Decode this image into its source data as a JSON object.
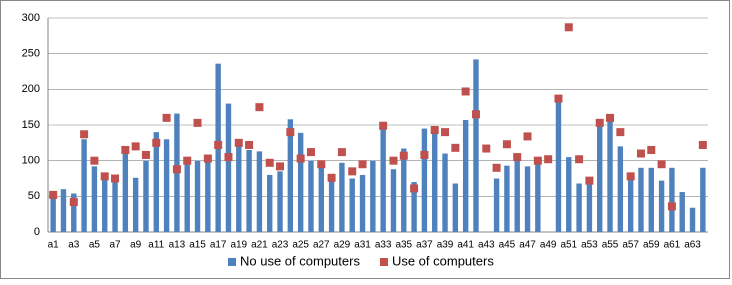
{
  "chart_data": {
    "type": "bar",
    "categories": [
      "a1",
      null,
      "a3",
      null,
      "a5",
      null,
      "a7",
      null,
      "a9",
      null,
      "a11",
      null,
      "a13",
      null,
      "a15",
      null,
      "a17",
      null,
      "a19",
      null,
      "a21",
      null,
      "a23",
      null,
      "a25",
      null,
      "a27",
      null,
      "a29",
      null,
      "a31",
      null,
      "a33",
      null,
      "a35",
      null,
      "a37",
      null,
      "a39",
      null,
      "a41",
      null,
      "a43",
      null,
      "a45",
      null,
      "a47",
      null,
      "a49",
      null,
      "a51",
      null,
      "a53",
      null,
      "a55",
      null,
      "a57",
      null,
      "a59",
      null,
      "a61",
      null,
      "a63",
      null
    ],
    "series": [
      {
        "name": "No use of computers",
        "type": "bar",
        "color": "#4f81bd",
        "values": [
          50,
          60,
          54,
          130,
          92,
          75,
          80,
          110,
          76,
          100,
          140,
          130,
          166,
          95,
          100,
          105,
          236,
          180,
          125,
          115,
          113,
          80,
          85,
          158,
          139,
          100,
          93,
          75,
          97,
          75,
          80,
          100,
          145,
          88,
          117,
          70,
          145,
          140,
          110,
          68,
          157,
          242,
          null,
          75,
          93,
          100,
          92,
          95,
          null,
          185,
          105,
          68,
          70,
          150,
          155,
          120,
          80,
          90,
          90,
          72,
          90,
          56,
          34,
          90
        ]
      },
      {
        "name": "Use of computers",
        "type": "scatter",
        "color": "#c0504d",
        "values": [
          52,
          null,
          42,
          137,
          100,
          78,
          75,
          115,
          120,
          108,
          125,
          160,
          88,
          100,
          153,
          103,
          122,
          105,
          125,
          122,
          175,
          97,
          92,
          140,
          103,
          112,
          95,
          76,
          112,
          85,
          95,
          null,
          149,
          100,
          107,
          61,
          108,
          143,
          140,
          118,
          197,
          165,
          117,
          90,
          123,
          105,
          134,
          100,
          102,
          187,
          287,
          102,
          72,
          153,
          160,
          140,
          78,
          110,
          115,
          95,
          36,
          null,
          null,
          122
        ]
      }
    ],
    "ylim": [
      0,
      300
    ],
    "yticks": [
      0,
      50,
      100,
      150,
      200,
      250,
      300
    ],
    "grid": true,
    "legend": "bottom"
  }
}
